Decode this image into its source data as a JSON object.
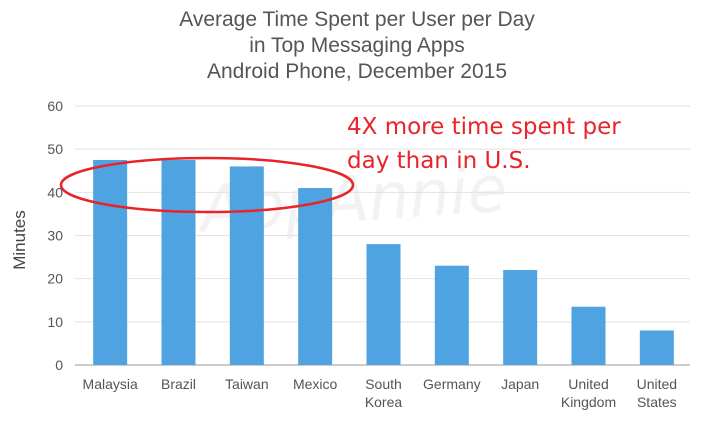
{
  "chart_data": {
    "type": "bar",
    "title_lines": [
      "Average Time Spent per User per Day",
      "in Top Messaging Apps",
      "Android Phone, December 2015"
    ],
    "ylabel": "Minutes",
    "ylim": [
      0,
      60
    ],
    "yticks": [
      0,
      10,
      20,
      30,
      40,
      50,
      60
    ],
    "grid": true,
    "categories": [
      [
        "Malaysia"
      ],
      [
        "Brazil"
      ],
      [
        "Taiwan"
      ],
      [
        "Mexico"
      ],
      [
        "South",
        "Korea"
      ],
      [
        "Germany"
      ],
      [
        "Japan"
      ],
      [
        "United",
        "Kingdom"
      ],
      [
        "United",
        "States"
      ]
    ],
    "values": [
      47.5,
      47.5,
      46,
      41,
      28,
      23,
      22,
      13.5,
      8
    ],
    "bar_color": "#4fa3e0",
    "annotation": {
      "lines": [
        "4X more time spent per",
        "day than in U.S."
      ],
      "color": "#e8232a"
    },
    "watermark": "AppAnnie"
  }
}
